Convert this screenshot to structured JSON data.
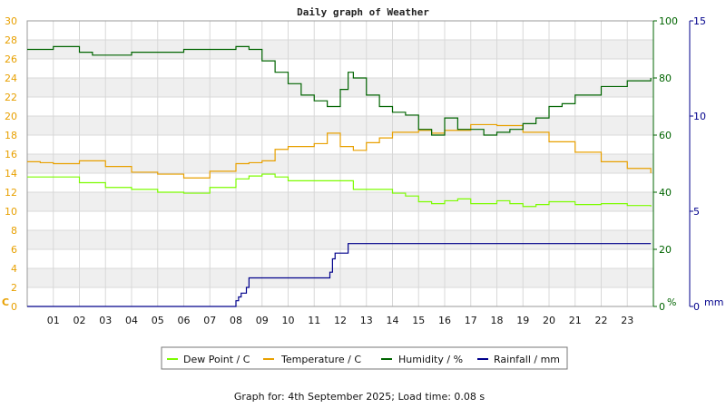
{
  "chart_data": {
    "type": "line",
    "title": "Daily graph of Weather",
    "footer": "Graph for: 4th September 2025; Load time: 0.08 s",
    "x_ticks": [
      "01",
      "02",
      "03",
      "04",
      "05",
      "06",
      "07",
      "08",
      "09",
      "10",
      "11",
      "12",
      "13",
      "14",
      "15",
      "16",
      "17",
      "18",
      "19",
      "20",
      "21",
      "22",
      "23"
    ],
    "x_range_hours": [
      0,
      24
    ],
    "axes": {
      "left": {
        "unit": "C",
        "min": 0,
        "max": 30,
        "ticks": [
          0,
          2,
          4,
          6,
          8,
          10,
          12,
          14,
          16,
          18,
          20,
          22,
          24,
          26,
          28,
          30
        ],
        "color": "#e8a000"
      },
      "right1": {
        "unit": "%",
        "min": 0,
        "max": 100,
        "ticks": [
          0,
          20,
          40,
          60,
          80,
          100
        ],
        "color": "#006400"
      },
      "right2": {
        "unit": "mm",
        "min": 0,
        "max": 15,
        "ticks": [
          0,
          5,
          10,
          15
        ],
        "color": "#00008b"
      }
    },
    "grid": true,
    "legend_placement": "bottom-center",
    "series": [
      {
        "name": "Dew Point / C",
        "axis": "left",
        "color": "#7cfc00",
        "x": [
          0,
          1,
          2,
          3,
          4,
          5,
          6,
          7,
          8,
          8.5,
          9,
          9.5,
          10,
          11,
          12,
          12.5,
          13,
          14,
          14.5,
          15,
          15.5,
          16,
          16.5,
          17,
          17.5,
          18,
          18.5,
          19,
          19.5,
          20,
          21,
          22,
          23,
          23.9
        ],
        "values": [
          13.6,
          13.6,
          13.0,
          12.5,
          12.3,
          12.0,
          11.9,
          12.5,
          13.4,
          13.7,
          13.9,
          13.6,
          13.2,
          13.2,
          13.2,
          12.3,
          12.3,
          11.9,
          11.6,
          11.0,
          10.8,
          11.1,
          11.3,
          10.8,
          10.8,
          11.1,
          10.8,
          10.5,
          10.7,
          11.0,
          10.7,
          10.8,
          10.6,
          10.5
        ]
      },
      {
        "name": "Temperature / C",
        "axis": "left",
        "color": "#e8a000",
        "x": [
          0,
          0.5,
          1,
          2,
          3,
          4,
          5,
          6,
          7,
          8,
          8.5,
          9,
          9.5,
          10,
          11,
          11.5,
          12,
          12.5,
          13,
          13.5,
          14,
          15,
          15.5,
          16,
          17,
          18,
          19,
          20,
          21,
          22,
          23,
          23.9
        ],
        "values": [
          15.2,
          15.1,
          15.0,
          15.3,
          14.7,
          14.1,
          13.9,
          13.5,
          14.2,
          15.0,
          15.1,
          15.3,
          16.5,
          16.8,
          17.1,
          18.2,
          16.8,
          16.4,
          17.2,
          17.7,
          18.3,
          18.5,
          18.2,
          18.5,
          19.1,
          19.0,
          18.3,
          17.3,
          16.2,
          15.2,
          14.5,
          14.0
        ]
      },
      {
        "name": "Humidity / %",
        "axis": "right1",
        "color": "#006400",
        "x": [
          0,
          0.5,
          1,
          1.5,
          2,
          2.5,
          3,
          4,
          5,
          6,
          7,
          8,
          8.5,
          9,
          9.5,
          10,
          10.5,
          11,
          11.5,
          12,
          12.3,
          12.5,
          13,
          13.5,
          14,
          14.5,
          15,
          15.5,
          16,
          16.5,
          17,
          17.5,
          18,
          18.5,
          19,
          19.5,
          20,
          20.5,
          21,
          22,
          23,
          23.9
        ],
        "values": [
          90,
          90,
          91,
          91,
          89,
          88,
          88,
          89,
          89,
          90,
          90,
          91,
          90,
          86,
          82,
          78,
          74,
          72,
          70,
          76,
          82,
          80,
          74,
          70,
          68,
          67,
          62,
          60,
          66,
          62,
          62,
          60,
          61,
          62,
          64,
          66,
          70,
          71,
          74,
          77,
          79,
          80
        ]
      },
      {
        "name": "Rainfall / mm",
        "axis": "right2",
        "color": "#00008b",
        "x": [
          0,
          7.9,
          8,
          8.1,
          8.2,
          8.4,
          8.5,
          10,
          11,
          11.5,
          11.6,
          11.7,
          11.8,
          12,
          12.2,
          12.3,
          12.5,
          14,
          16,
          18,
          20,
          22,
          23.9
        ],
        "values": [
          0,
          0,
          0.3,
          0.5,
          0.7,
          1.0,
          1.5,
          1.5,
          1.5,
          1.5,
          1.8,
          2.5,
          2.8,
          2.8,
          2.8,
          3.3,
          3.3,
          3.3,
          3.3,
          3.3,
          3.3,
          3.3,
          3.3
        ]
      }
    ]
  }
}
